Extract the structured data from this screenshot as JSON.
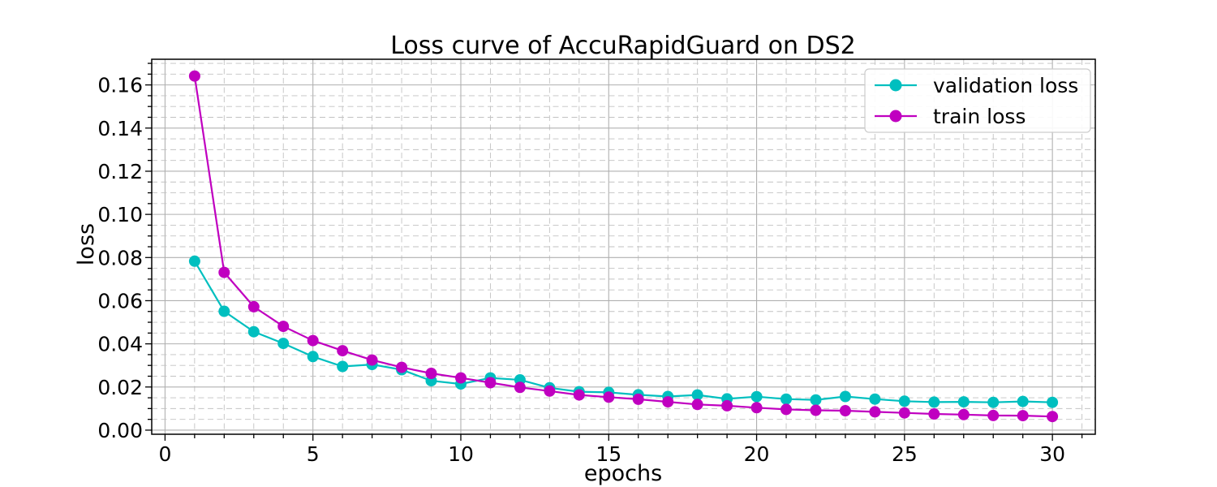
{
  "figure": {
    "background": "#ffffff"
  },
  "chart_data": {
    "type": "line",
    "title": "Loss curve of AccuRapidGuard on DS2",
    "xlabel": "epochs",
    "ylabel": "loss",
    "x": [
      1,
      2,
      3,
      4,
      5,
      6,
      7,
      8,
      9,
      10,
      11,
      12,
      13,
      14,
      15,
      16,
      17,
      18,
      19,
      20,
      21,
      22,
      23,
      24,
      25,
      26,
      27,
      28,
      29,
      30
    ],
    "series": [
      {
        "name": "validation loss",
        "color": "#00bfbf",
        "values": [
          0.0783,
          0.0551,
          0.0456,
          0.0402,
          0.0341,
          0.0295,
          0.0304,
          0.028,
          0.0229,
          0.0214,
          0.0242,
          0.0233,
          0.0196,
          0.0178,
          0.0175,
          0.0164,
          0.0156,
          0.0163,
          0.0145,
          0.0155,
          0.0144,
          0.014,
          0.0156,
          0.0144,
          0.0134,
          0.013,
          0.0131,
          0.0129,
          0.0133,
          0.0129
        ]
      },
      {
        "name": "train loss",
        "color": "#c000c0",
        "values": [
          0.1641,
          0.0731,
          0.0572,
          0.0481,
          0.0415,
          0.0368,
          0.0325,
          0.0291,
          0.0263,
          0.0242,
          0.022,
          0.0198,
          0.0181,
          0.0163,
          0.0153,
          0.0143,
          0.0131,
          0.0119,
          0.0113,
          0.0104,
          0.0096,
          0.0092,
          0.009,
          0.0085,
          0.008,
          0.0075,
          0.0072,
          0.0068,
          0.0067,
          0.0063
        ]
      }
    ],
    "xlim": [
      -0.45,
      31.45
    ],
    "ylim": [
      -0.0019,
      0.1719
    ],
    "xticks": [
      0,
      5,
      10,
      15,
      20,
      25,
      30
    ],
    "xticklabels": [
      "0",
      "5",
      "10",
      "15",
      "20",
      "25",
      "30"
    ],
    "yticks": [
      0.0,
      0.02,
      0.04,
      0.06,
      0.08,
      0.1,
      0.12,
      0.14,
      0.16
    ],
    "yticklabels": [
      "0.00",
      "0.02",
      "0.04",
      "0.06",
      "0.08",
      "0.10",
      "0.12",
      "0.14",
      "0.16"
    ],
    "minor_x_step": 1,
    "minor_y_step": 0.005,
    "grid": {
      "major": true,
      "minor": true,
      "minor_style": "dashed"
    },
    "legend": {
      "position": "upper right"
    },
    "marker": "o"
  }
}
